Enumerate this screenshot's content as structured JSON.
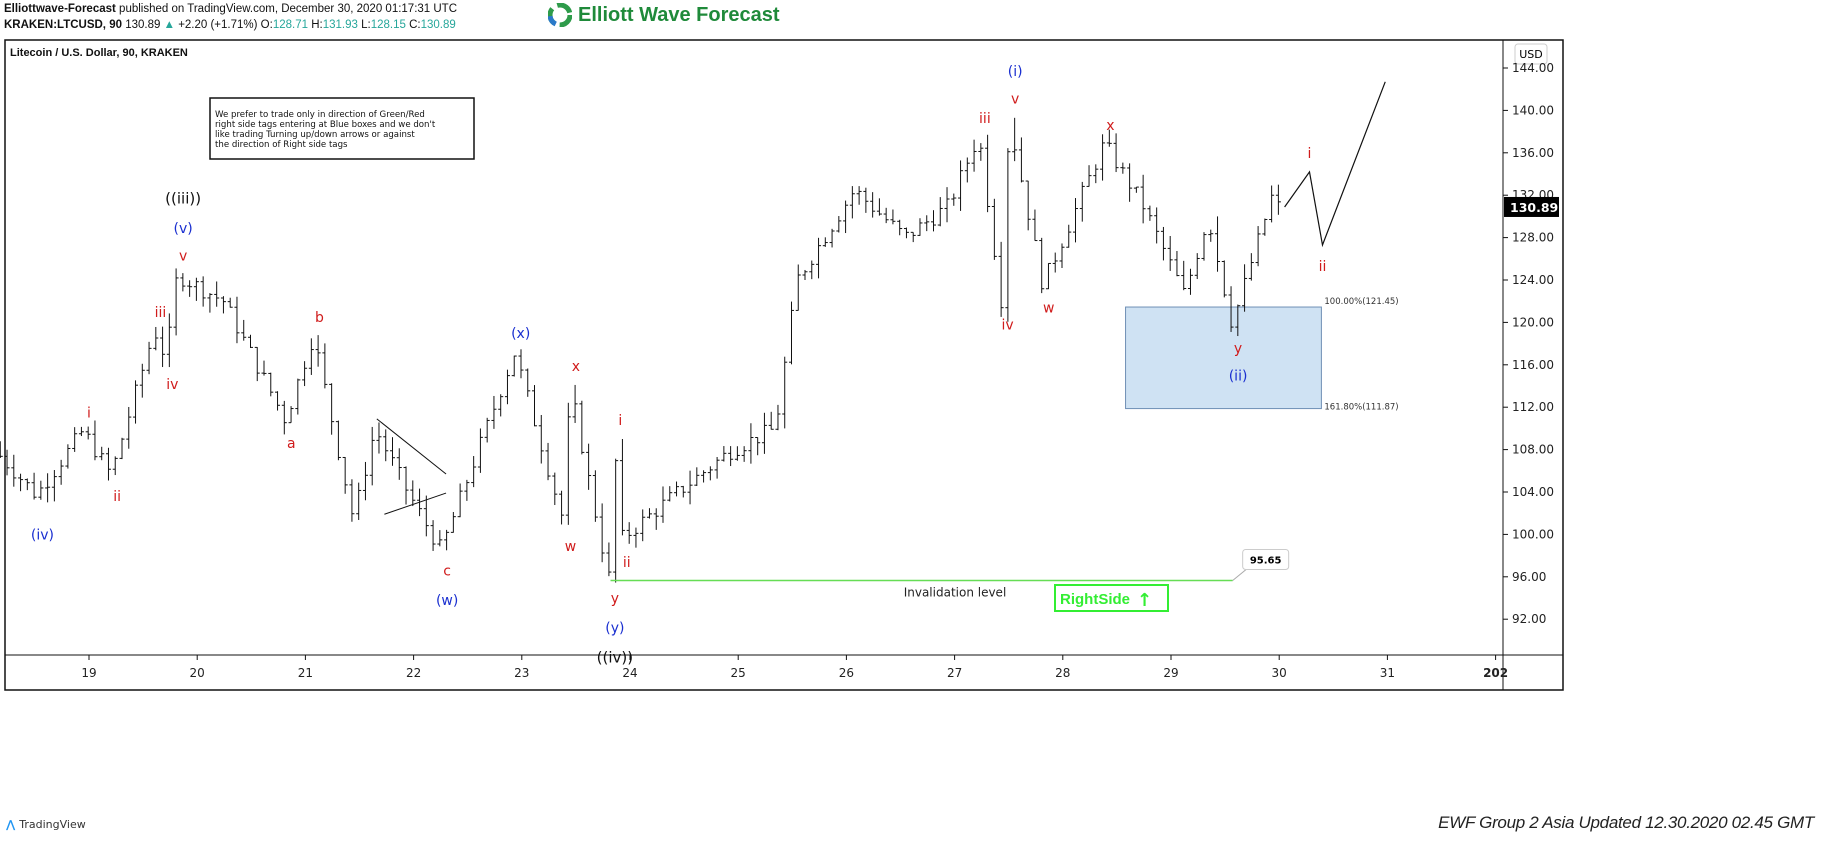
{
  "header": {
    "publisher": "Elliottwave-Forecast",
    "published": "published on TradingView.com, December 30, 2020 01:17:31 UTC",
    "symbol": "KRAKEN:LTCUSD, 90",
    "last": "130.89",
    "change": "+2.20 (+1.71%)",
    "o_label": "O:",
    "o": "128.71",
    "h_label": "H:",
    "h": "131.93",
    "l_label": "L:",
    "l": "128.15",
    "c_label": "C:",
    "c": "130.89"
  },
  "logo": {
    "text": "Elliott Wave Forecast"
  },
  "footer": {
    "tradingview": "TradingView",
    "updated": "EWF Group 2 Asia Updated 12.30.2020 02.45 GMT"
  },
  "chart_data": {
    "type": "ohlc",
    "title": "Litecoin / U.S. Dollar, 90, KRAKEN",
    "currency": "USD",
    "ylim": [
      88,
      146
    ],
    "yticks": [
      92,
      96,
      100,
      104,
      108,
      112,
      116,
      120,
      124,
      128,
      132,
      136,
      140,
      144
    ],
    "xticks": [
      "19",
      "20",
      "21",
      "22",
      "23",
      "24",
      "25",
      "26",
      "27",
      "28",
      "29",
      "30",
      "31",
      "202"
    ],
    "xlim": [
      18.18,
      32.1
    ],
    "last_price": 130.89,
    "price_path": [
      [
        18.18,
        108
      ],
      [
        18.57,
        103.7
      ],
      [
        19.0,
        109.8
      ],
      [
        19.26,
        105.6
      ],
      [
        19.66,
        119.3
      ],
      [
        19.77,
        116.5
      ],
      [
        19.87,
        124.5
      ],
      [
        20.3,
        122
      ],
      [
        20.87,
        110.8
      ],
      [
        21.13,
        118.8
      ],
      [
        21.5,
        101.4
      ],
      [
        21.7,
        110
      ],
      [
        22.0,
        104
      ],
      [
        22.31,
        98.5
      ],
      [
        22.99,
        117.2
      ],
      [
        23.45,
        100.9
      ],
      [
        23.5,
        114.1
      ],
      [
        23.86,
        95.65
      ],
      [
        23.91,
        109
      ],
      [
        23.97,
        99.5
      ],
      [
        24.5,
        104
      ],
      [
        25.0,
        108
      ],
      [
        25.4,
        110
      ],
      [
        25.6,
        124
      ],
      [
        26.13,
        132.5
      ],
      [
        26.6,
        128
      ],
      [
        27.0,
        131
      ],
      [
        27.28,
        137.7
      ],
      [
        27.49,
        121.9
      ],
      [
        27.56,
        139.3
      ],
      [
        27.87,
        123.5
      ],
      [
        28.44,
        136.9
      ],
      [
        28.8,
        131
      ],
      [
        29.18,
        122.6
      ],
      [
        29.4,
        130
      ],
      [
        29.62,
        119.8
      ],
      [
        29.99,
        131.9
      ],
      [
        30.05,
        130.89
      ]
    ],
    "projection": [
      [
        30.05,
        130.89
      ],
      [
        30.28,
        134.2
      ],
      [
        30.4,
        127.3
      ],
      [
        30.98,
        142.7
      ]
    ],
    "wave_labels": [
      {
        "t": "(iv)",
        "d": 18.57,
        "p": 100.0,
        "c": "blue"
      },
      {
        "t": "i",
        "d": 19.0,
        "p": 111.5,
        "c": "red"
      },
      {
        "t": "ii",
        "d": 19.26,
        "p": 103.6,
        "c": "red"
      },
      {
        "t": "iii",
        "d": 19.66,
        "p": 121.0,
        "c": "red"
      },
      {
        "t": "iv",
        "d": 19.77,
        "p": 114.2,
        "c": "red"
      },
      {
        "t": "v",
        "d": 19.87,
        "p": 126.3,
        "c": "red"
      },
      {
        "t": "(v)",
        "d": 19.87,
        "p": 128.9,
        "c": "blue"
      },
      {
        "t": "((iii))",
        "d": 19.87,
        "p": 131.7,
        "c": "black"
      },
      {
        "t": "a",
        "d": 20.87,
        "p": 108.6,
        "c": "red"
      },
      {
        "t": "b",
        "d": 21.13,
        "p": 120.5,
        "c": "red"
      },
      {
        "t": "c",
        "d": 22.31,
        "p": 96.6,
        "c": "red"
      },
      {
        "t": "(w)",
        "d": 22.31,
        "p": 93.8,
        "c": "blue"
      },
      {
        "t": "(x)",
        "d": 22.99,
        "p": 119.0,
        "c": "blue"
      },
      {
        "t": "w",
        "d": 23.45,
        "p": 98.9,
        "c": "red"
      },
      {
        "t": "x",
        "d": 23.5,
        "p": 115.9,
        "c": "red"
      },
      {
        "t": "i",
        "d": 23.91,
        "p": 110.8,
        "c": "red"
      },
      {
        "t": "ii",
        "d": 23.97,
        "p": 97.4,
        "c": "red"
      },
      {
        "t": "y",
        "d": 23.86,
        "p": 94.0,
        "c": "red"
      },
      {
        "t": "(y)",
        "d": 23.86,
        "p": 91.2,
        "c": "blue"
      },
      {
        "t": "((iv))",
        "d": 23.86,
        "p": 88.4,
        "c": "black"
      },
      {
        "t": "iii",
        "d": 27.28,
        "p": 139.3,
        "c": "red"
      },
      {
        "t": "iv",
        "d": 27.49,
        "p": 119.8,
        "c": "red"
      },
      {
        "t": "v",
        "d": 27.56,
        "p": 141.1,
        "c": "red"
      },
      {
        "t": "(i)",
        "d": 27.56,
        "p": 143.7,
        "c": "blue"
      },
      {
        "t": "w",
        "d": 27.87,
        "p": 121.4,
        "c": "red"
      },
      {
        "t": "x",
        "d": 28.44,
        "p": 138.6,
        "c": "red"
      },
      {
        "t": "y",
        "d": 29.62,
        "p": 117.6,
        "c": "red"
      },
      {
        "t": "(ii)",
        "d": 29.62,
        "p": 115.0,
        "c": "blue"
      },
      {
        "t": "i",
        "d": 30.28,
        "p": 136.0,
        "c": "red"
      },
      {
        "t": "ii",
        "d": 30.4,
        "p": 125.3,
        "c": "red"
      }
    ],
    "triangle": [
      [
        [
          21.66,
          110.9
        ],
        [
          22.3,
          105.7
        ]
      ],
      [
        [
          21.73,
          101.9
        ],
        [
          22.3,
          103.9
        ]
      ]
    ],
    "blue_box": {
      "from": 28.58,
      "to": 30.39,
      "upper": 121.45,
      "lower": 111.87,
      "upper_label": "100.00%(121.45)",
      "lower_label": "161.80%(111.87)",
      "color": "#cfe2f3"
    },
    "invalidation": {
      "price": 95.65,
      "label": "Invalidation level",
      "value_label": "95.65",
      "from": 23.82,
      "to": 29.57,
      "color": "#66dd55"
    },
    "rightside": {
      "text": "RightSide",
      "arrow": "up-arrow",
      "color": "#33ee33"
    },
    "note": [
      "We prefer to trade only in direction of Green/Red",
      "right side tags entering at Blue boxes and we don't",
      "like trading Turning up/down arrows or against",
      "the direction of Right side tags"
    ]
  }
}
